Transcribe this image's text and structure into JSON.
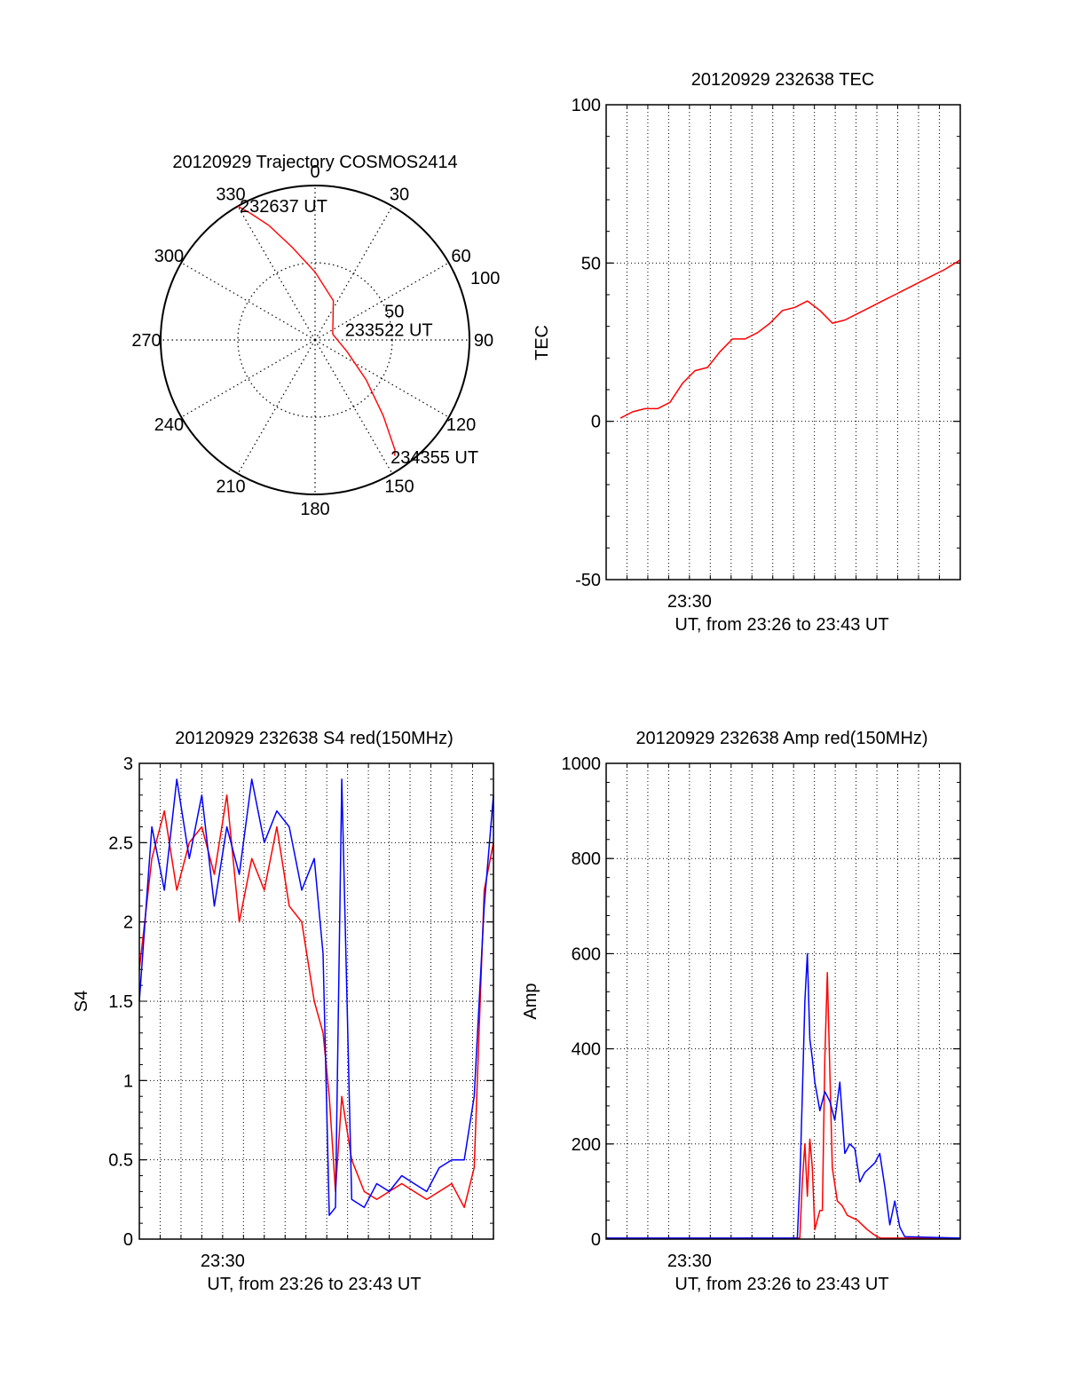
{
  "colors": {
    "red": "#ff0000",
    "blue": "#0000ff",
    "axis": "#000000",
    "grid": "#000000"
  },
  "chart_data": [
    {
      "id": "polar",
      "type": "scatter",
      "subtype": "polar-trajectory",
      "title": "20120929 Trajectory COSMOS2414",
      "angle_labels": [
        "0",
        "30",
        "60",
        "90",
        "120",
        "150",
        "180",
        "210",
        "240",
        "270",
        "300",
        "330"
      ],
      "radius_labels": [
        "50",
        "100"
      ],
      "rlim": [
        0,
        100
      ],
      "grid": true,
      "series": [
        {
          "color": "#ff0000",
          "points": [
            [
              330,
              100
            ],
            [
              333,
              92
            ],
            [
              338,
              80
            ],
            [
              346,
              62
            ],
            [
              360,
              44
            ],
            [
              25,
              28
            ],
            [
              72,
              12
            ],
            [
              110,
              22
            ],
            [
              128,
              42
            ],
            [
              138,
              66
            ],
            [
              144,
              88
            ],
            [
              145.5,
              91
            ]
          ]
        }
      ],
      "annotations": [
        {
          "text": "232637 UT",
          "az": 331,
          "r": 96
        },
        {
          "text": "233522 UT",
          "az": 80,
          "r": 22
        },
        {
          "text": "234355 UT",
          "az": 147,
          "r": 94
        }
      ]
    },
    {
      "id": "tec",
      "type": "line",
      "title": "20120929 232638 TEC",
      "xlabel": "UT, from 23:26 to 23:43 UT",
      "ylabel": "TEC",
      "xlim": [
        23.4333,
        23.7167
      ],
      "ylim": [
        -50,
        100
      ],
      "yticks": [
        "-50",
        "0",
        "50",
        "100"
      ],
      "xticks": [
        {
          "value": 23.5,
          "label": "23:30"
        }
      ],
      "grid": true,
      "series": [
        {
          "color": "#ff0000",
          "x": [
            23.4447,
            23.4544,
            23.4644,
            23.4744,
            23.4844,
            23.4944,
            23.5044,
            23.5144,
            23.5244,
            23.5344,
            23.5444,
            23.5544,
            23.5644,
            23.5744,
            23.5844,
            23.5944,
            23.6044,
            23.6144,
            23.6244,
            23.6344,
            23.6444,
            23.6544,
            23.6644,
            23.6744,
            23.6844,
            23.6944,
            23.7044,
            23.7167
          ],
          "y": [
            1,
            3,
            4,
            4,
            6,
            12,
            16,
            17,
            22,
            26,
            26,
            28,
            31,
            35,
            36,
            38,
            35,
            31,
            32,
            34,
            36,
            38,
            40,
            42,
            44,
            46,
            48,
            51
          ]
        }
      ]
    },
    {
      "id": "s4",
      "type": "line",
      "title": "20120929 232638 S4 red(150MHz)",
      "xlabel": "UT, from 23:26 to 23:43 UT",
      "ylabel": "S4",
      "xlim": [
        23.4333,
        23.7167
      ],
      "ylim": [
        0,
        3
      ],
      "yticks": [
        "0",
        "0.5",
        "1",
        "1.5",
        "2",
        "2.5",
        "3"
      ],
      "xticks": [
        {
          "value": 23.5,
          "label": "23:30"
        }
      ],
      "grid": true,
      "series": [
        {
          "color": "#ff0000",
          "x": [
            23.4333,
            23.4433,
            23.4533,
            23.4633,
            23.4733,
            23.4833,
            23.4933,
            23.5033,
            23.5133,
            23.5233,
            23.5333,
            23.5433,
            23.5533,
            23.5633,
            23.5733,
            23.5803,
            23.5853,
            23.5903,
            23.5953,
            23.6033,
            23.6133,
            23.6233,
            23.6333,
            23.6433,
            23.6533,
            23.6633,
            23.6733,
            23.6833,
            23.6933,
            23.7013,
            23.7093,
            23.7167
          ],
          "y": [
            1.7,
            2.4,
            2.7,
            2.2,
            2.5,
            2.6,
            2.3,
            2.8,
            2.0,
            2.4,
            2.2,
            2.6,
            2.1,
            2.0,
            1.5,
            1.3,
            0.9,
            0.3,
            0.9,
            0.5,
            0.3,
            0.25,
            0.3,
            0.35,
            0.3,
            0.25,
            0.3,
            0.35,
            0.2,
            0.45,
            2.2,
            2.5
          ]
        },
        {
          "color": "#0000ff",
          "x": [
            23.4333,
            23.4433,
            23.4533,
            23.4633,
            23.4733,
            23.4833,
            23.4933,
            23.5033,
            23.5133,
            23.5233,
            23.5333,
            23.5433,
            23.5533,
            23.5633,
            23.5733,
            23.5803,
            23.5853,
            23.5903,
            23.5953,
            23.6033,
            23.6133,
            23.6233,
            23.6333,
            23.6433,
            23.6533,
            23.6633,
            23.6733,
            23.6833,
            23.6933,
            23.7013,
            23.7093,
            23.7167
          ],
          "y": [
            1.5,
            2.6,
            2.2,
            2.9,
            2.4,
            2.8,
            2.1,
            2.6,
            2.3,
            2.9,
            2.5,
            2.7,
            2.6,
            2.2,
            2.4,
            1.8,
            0.15,
            0.2,
            2.9,
            0.25,
            0.2,
            0.35,
            0.3,
            0.4,
            0.35,
            0.3,
            0.45,
            0.5,
            0.5,
            0.9,
            2.1,
            2.8
          ]
        }
      ]
    },
    {
      "id": "amp",
      "type": "line",
      "title": "20120929 232638 Amp red(150MHz)",
      "xlabel": "UT, from 23:26 to 23:43 UT",
      "ylabel": "Amp",
      "xlim": [
        23.4333,
        23.7167
      ],
      "ylim": [
        0,
        1000
      ],
      "yticks": [
        "0",
        "200",
        "400",
        "600",
        "800",
        "1000"
      ],
      "xticks": [
        {
          "value": 23.5,
          "label": "23:30"
        }
      ],
      "grid": true,
      "series": [
        {
          "color": "#ff0000",
          "x": [
            23.4333,
            23.5883,
            23.5903,
            23.5923,
            23.5943,
            23.5963,
            23.5983,
            23.6003,
            23.6023,
            23.6043,
            23.6063,
            23.6083,
            23.6103,
            23.6143,
            23.6183,
            23.6223,
            23.6263,
            23.6303,
            23.6343,
            23.6383,
            23.6423,
            23.6473,
            23.6503,
            23.6533,
            23.7167
          ],
          "y": [
            2,
            2,
            120,
            200,
            90,
            210,
            150,
            20,
            40,
            60,
            60,
            380,
            560,
            150,
            80,
            70,
            50,
            45,
            40,
            30,
            20,
            10,
            5,
            2,
            2
          ]
        },
        {
          "color": "#0000ff",
          "x": [
            23.4333,
            23.5863,
            23.5883,
            23.5903,
            23.5923,
            23.5943,
            23.5963,
            23.5983,
            23.6003,
            23.6043,
            23.6083,
            23.6123,
            23.6163,
            23.6203,
            23.6243,
            23.6283,
            23.6323,
            23.6363,
            23.6403,
            23.6443,
            23.6483,
            23.6523,
            23.6563,
            23.6603,
            23.6643,
            23.6683,
            23.6723,
            23.7167
          ],
          "y": [
            2,
            2,
            120,
            300,
            500,
            600,
            420,
            380,
            330,
            270,
            310,
            290,
            250,
            330,
            180,
            200,
            190,
            120,
            140,
            150,
            160,
            180,
            110,
            30,
            80,
            25,
            5,
            2
          ]
        }
      ]
    }
  ]
}
